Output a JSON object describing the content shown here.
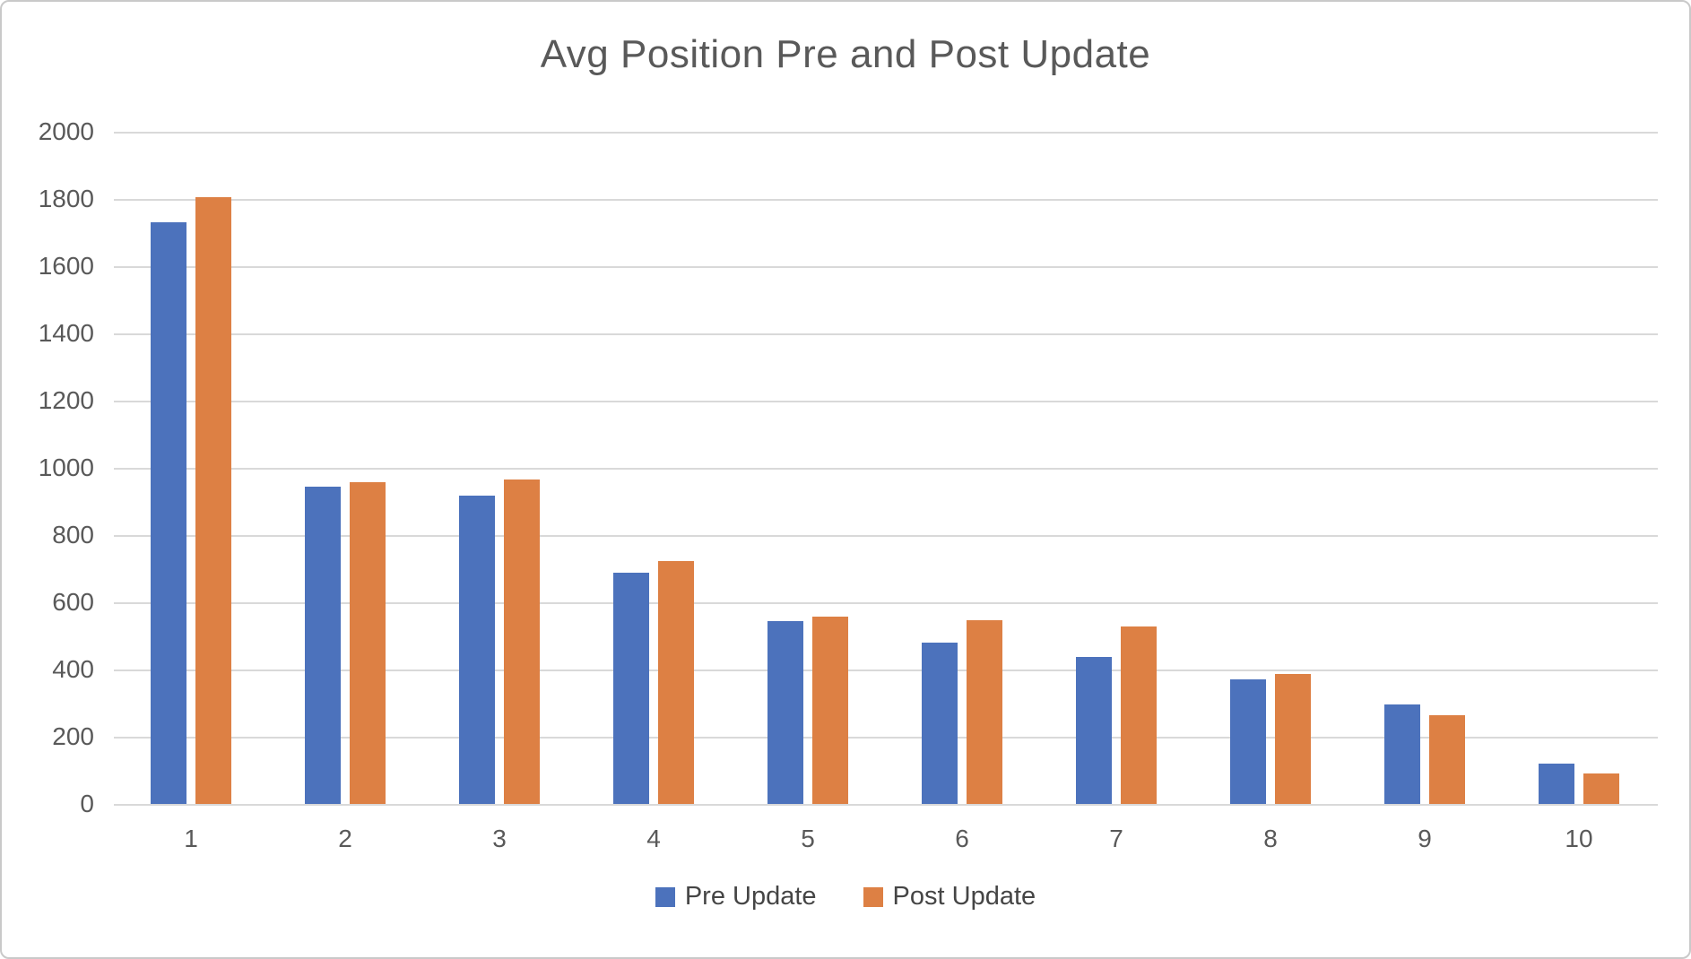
{
  "page": {
    "title": "Avg Position Pre and Post Update"
  },
  "chart_data": {
    "type": "bar",
    "title": "Avg Position Pre and Post Update",
    "categories": [
      "1",
      "2",
      "3",
      "4",
      "5",
      "6",
      "7",
      "8",
      "9",
      "10"
    ],
    "series": [
      {
        "name": "Pre Update",
        "color": "#4c72bc",
        "values": [
          1730,
          945,
          918,
          688,
          545,
          480,
          436,
          370,
          295,
          120
        ]
      },
      {
        "name": "Post Update",
        "color": "#dd8044",
        "values": [
          1805,
          958,
          966,
          722,
          558,
          546,
          529,
          386,
          265,
          90
        ]
      }
    ],
    "ylim": [
      0,
      2000
    ],
    "ytick_step": 200,
    "ytick_labels": [
      "0",
      "200",
      "400",
      "600",
      "800",
      "1000",
      "1200",
      "1400",
      "1600",
      "1800",
      "2000"
    ],
    "grid": true,
    "legend_position": "bottom",
    "xlabel": "",
    "ylabel": ""
  },
  "colors": {
    "grid": "#d9d9d9",
    "tick_text": "#595959",
    "title_text": "#595959",
    "legend_text": "#454545",
    "border": "#c9c9c9",
    "background": "#ffffff"
  }
}
